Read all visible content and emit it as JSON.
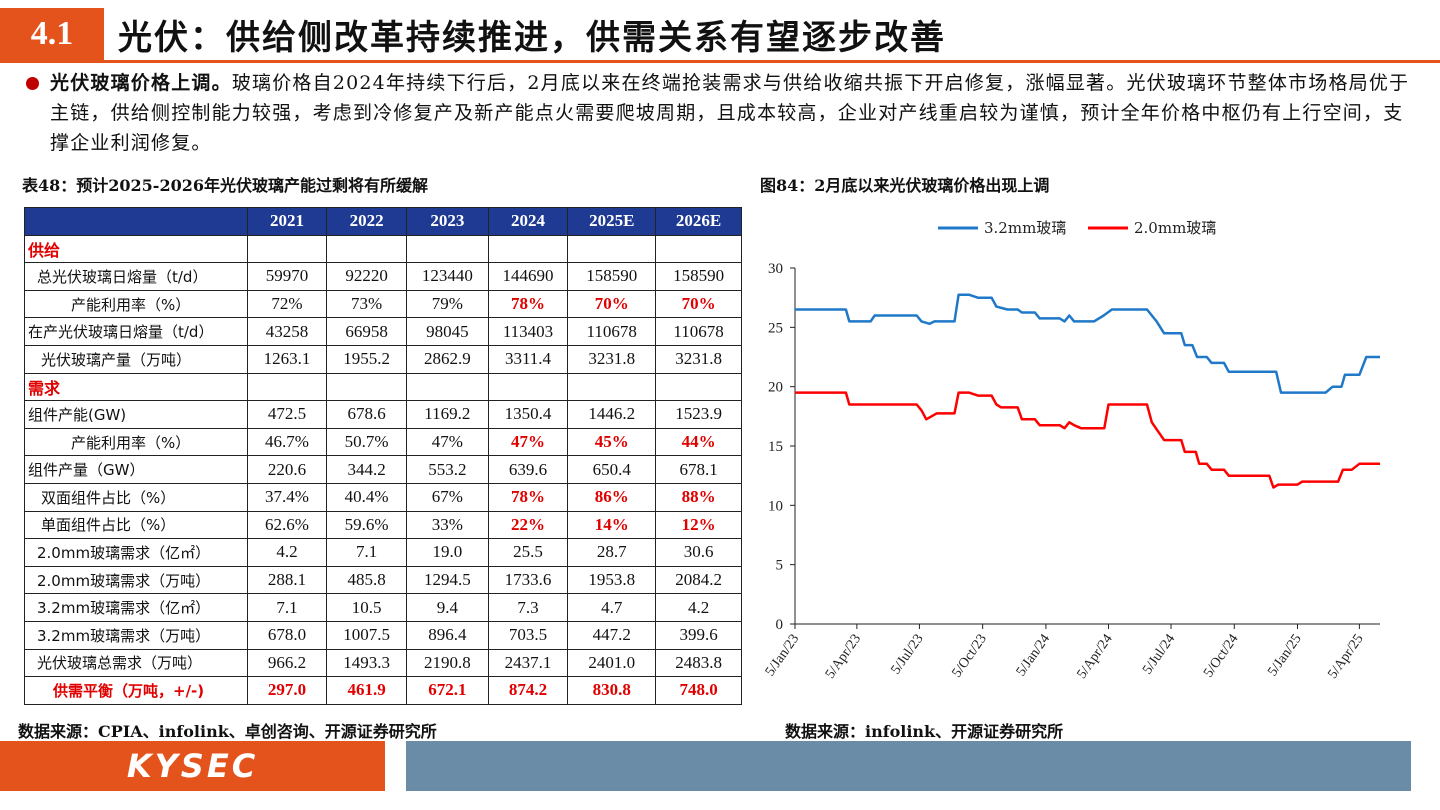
{
  "header": {
    "section_number": "4.1",
    "title": "光伏：供给侧改革持续推进，供需关系有望逐步改善"
  },
  "bullet": {
    "lead": "光伏玻璃价格上调。",
    "text": "玻璃价格自2024年持续下行后，2月底以来在终端抢装需求与供给收缩共振下开启修复，涨幅显著。光伏玻璃环节整体市场格局优于主链，供给侧控制能力较强，考虑到冷修复产及新产能点火需要爬坡周期，且成本较高，企业对产线重启较为谨慎，预计全年价格中枢仍有上行空间，支撑企业利润修复。"
  },
  "table": {
    "caption": "表48：预计2025-2026年光伏玻璃产能过剩将有所缓解",
    "headers": [
      "",
      "2021",
      "2022",
      "2023",
      "2024",
      "2025E",
      "2026E"
    ],
    "section_supply": "供给",
    "section_demand": "需求",
    "rows_supply": [
      {
        "label": "总光伏玻璃日熔量（t/d）",
        "values": [
          "59970",
          "92220",
          "123440",
          "144690",
          "158590",
          "158590"
        ],
        "red": [
          false,
          false,
          false,
          false,
          false,
          false
        ]
      },
      {
        "label": "产能利用率（%）",
        "values": [
          "72%",
          "73%",
          "79%",
          "78%",
          "70%",
          "70%"
        ],
        "red": [
          false,
          false,
          false,
          true,
          true,
          true
        ]
      },
      {
        "label": "在产光伏玻璃日熔量（t/d）",
        "values": [
          "43258",
          "66958",
          "98045",
          "113403",
          "110678",
          "110678"
        ],
        "red": [
          false,
          false,
          false,
          false,
          false,
          false
        ]
      },
      {
        "label": "光伏玻璃产量（万吨）",
        "values": [
          "1263.1",
          "1955.2",
          "2862.9",
          "3311.4",
          "3231.8",
          "3231.8"
        ],
        "red": [
          false,
          false,
          false,
          false,
          false,
          false
        ]
      }
    ],
    "rows_demand": [
      {
        "label": "组件产能(GW)",
        "values": [
          "472.5",
          "678.6",
          "1169.2",
          "1350.4",
          "1446.2",
          "1523.9"
        ],
        "red": [
          false,
          false,
          false,
          false,
          false,
          false
        ]
      },
      {
        "label": "产能利用率（%）",
        "values": [
          "46.7%",
          "50.7%",
          "47%",
          "47%",
          "45%",
          "44%"
        ],
        "red": [
          false,
          false,
          false,
          true,
          true,
          true
        ]
      },
      {
        "label": "组件产量（GW）",
        "values": [
          "220.6",
          "344.2",
          "553.2",
          "639.6",
          "650.4",
          "678.1"
        ],
        "red": [
          false,
          false,
          false,
          false,
          false,
          false
        ]
      },
      {
        "label": "双面组件占比（%）",
        "values": [
          "37.4%",
          "40.4%",
          "67%",
          "78%",
          "86%",
          "88%"
        ],
        "red": [
          false,
          false,
          false,
          true,
          true,
          true
        ]
      },
      {
        "label": "单面组件占比（%）",
        "values": [
          "62.6%",
          "59.6%",
          "33%",
          "22%",
          "14%",
          "12%"
        ],
        "red": [
          false,
          false,
          false,
          true,
          true,
          true
        ]
      },
      {
        "label": "2.0mm玻璃需求（亿㎡）",
        "values": [
          "4.2",
          "7.1",
          "19.0",
          "25.5",
          "28.7",
          "30.6"
        ],
        "red": [
          false,
          false,
          false,
          false,
          false,
          false
        ]
      },
      {
        "label": "2.0mm玻璃需求（万吨）",
        "values": [
          "288.1",
          "485.8",
          "1294.5",
          "1733.6",
          "1953.8",
          "2084.2"
        ],
        "red": [
          false,
          false,
          false,
          false,
          false,
          false
        ]
      },
      {
        "label": "3.2mm玻璃需求（亿㎡）",
        "values": [
          "7.1",
          "10.5",
          "9.4",
          "7.3",
          "4.7",
          "4.2"
        ],
        "red": [
          false,
          false,
          false,
          false,
          false,
          false
        ]
      },
      {
        "label": "3.2mm玻璃需求（万吨）",
        "values": [
          "678.0",
          "1007.5",
          "896.4",
          "703.5",
          "447.2",
          "399.6"
        ],
        "red": [
          false,
          false,
          false,
          false,
          false,
          false
        ]
      },
      {
        "label": "光伏玻璃总需求（万吨）",
        "values": [
          "966.2",
          "1493.3",
          "2190.8",
          "2437.1",
          "2401.0",
          "2483.8"
        ],
        "red": [
          false,
          false,
          false,
          false,
          false,
          false
        ]
      }
    ],
    "balance": {
      "label": "供需平衡（万吨，+/-)",
      "values": [
        "297.0",
        "461.9",
        "672.1",
        "874.2",
        "830.8",
        "748.0"
      ]
    }
  },
  "chart_caption": "图84：2月底以来光伏玻璃价格出现上调",
  "chart_data": {
    "type": "line",
    "x_ticks": [
      "5/Jan/23",
      "5/Apr/23",
      "5/Jul/23",
      "5/Oct/23",
      "5/Jan/24",
      "5/Apr/24",
      "5/Jul/24",
      "5/Oct/24",
      "5/Jan/25",
      "5/Apr/25"
    ],
    "ylim": [
      0,
      30
    ],
    "y_ticks": [
      0,
      5,
      10,
      15,
      20,
      25,
      30
    ],
    "legend_position": "top",
    "series": [
      {
        "name": "3.2mm玻璃",
        "color": "#1f78c8",
        "points": [
          [
            "2023-01-05",
            26.5
          ],
          [
            "2023-03-20",
            26.5
          ],
          [
            "2023-03-25",
            25.5
          ],
          [
            "2023-04-25",
            25.5
          ],
          [
            "2023-05-01",
            26.0
          ],
          [
            "2023-07-01",
            26.0
          ],
          [
            "2023-07-08",
            25.5
          ],
          [
            "2023-07-20",
            25.3
          ],
          [
            "2023-07-27",
            25.5
          ],
          [
            "2023-08-25",
            25.5
          ],
          [
            "2023-08-31",
            27.75
          ],
          [
            "2023-09-15",
            27.75
          ],
          [
            "2023-09-28",
            27.5
          ],
          [
            "2023-10-18",
            27.5
          ],
          [
            "2023-10-25",
            26.75
          ],
          [
            "2023-11-10",
            26.5
          ],
          [
            "2023-11-25",
            26.5
          ],
          [
            "2023-12-01",
            26.25
          ],
          [
            "2023-12-20",
            26.25
          ],
          [
            "2023-12-27",
            25.75
          ],
          [
            "2024-01-25",
            25.75
          ],
          [
            "2024-02-01",
            25.5
          ],
          [
            "2024-02-08",
            26.0
          ],
          [
            "2024-02-15",
            25.5
          ],
          [
            "2024-03-15",
            25.5
          ],
          [
            "2024-03-29",
            26.0
          ],
          [
            "2024-04-10",
            26.5
          ],
          [
            "2024-05-31",
            26.5
          ],
          [
            "2024-06-14",
            25.5
          ],
          [
            "2024-06-25",
            24.5
          ],
          [
            "2024-07-20",
            24.5
          ],
          [
            "2024-07-25",
            23.5
          ],
          [
            "2024-08-05",
            23.5
          ],
          [
            "2024-08-12",
            22.5
          ],
          [
            "2024-08-26",
            22.5
          ],
          [
            "2024-09-02",
            22.0
          ],
          [
            "2024-09-20",
            22.0
          ],
          [
            "2024-09-27",
            21.25
          ],
          [
            "2024-12-05",
            21.25
          ],
          [
            "2024-12-12",
            19.5
          ],
          [
            "2025-02-15",
            19.5
          ],
          [
            "2025-02-25",
            20.0
          ],
          [
            "2025-03-10",
            20.0
          ],
          [
            "2025-03-15",
            21.0
          ],
          [
            "2025-04-05",
            21.0
          ],
          [
            "2025-04-15",
            22.5
          ],
          [
            "2025-05-05",
            22.5
          ]
        ]
      },
      {
        "name": "2.0mm玻璃",
        "color": "#ff0000",
        "points": [
          [
            "2023-01-05",
            19.5
          ],
          [
            "2023-03-20",
            19.5
          ],
          [
            "2023-03-25",
            18.5
          ],
          [
            "2023-07-01",
            18.5
          ],
          [
            "2023-07-08",
            18.0
          ],
          [
            "2023-07-15",
            17.25
          ],
          [
            "2023-07-30",
            17.75
          ],
          [
            "2023-08-25",
            17.75
          ],
          [
            "2023-08-31",
            19.5
          ],
          [
            "2023-09-15",
            19.5
          ],
          [
            "2023-09-28",
            19.25
          ],
          [
            "2023-10-18",
            19.25
          ],
          [
            "2023-10-25",
            18.5
          ],
          [
            "2023-11-01",
            18.25
          ],
          [
            "2023-11-25",
            18.25
          ],
          [
            "2023-12-01",
            17.25
          ],
          [
            "2023-12-20",
            17.25
          ],
          [
            "2023-12-27",
            16.75
          ],
          [
            "2024-01-25",
            16.75
          ],
          [
            "2024-02-01",
            16.5
          ],
          [
            "2024-02-08",
            17.0
          ],
          [
            "2024-02-15",
            16.75
          ],
          [
            "2024-02-25",
            16.5
          ],
          [
            "2024-03-30",
            16.5
          ],
          [
            "2024-04-05",
            18.5
          ],
          [
            "2024-05-31",
            18.5
          ],
          [
            "2024-06-07",
            17.0
          ],
          [
            "2024-06-25",
            15.5
          ],
          [
            "2024-07-20",
            15.5
          ],
          [
            "2024-07-25",
            14.5
          ],
          [
            "2024-08-10",
            14.5
          ],
          [
            "2024-08-15",
            13.5
          ],
          [
            "2024-08-26",
            13.5
          ],
          [
            "2024-09-02",
            13.0
          ],
          [
            "2024-09-20",
            13.0
          ],
          [
            "2024-09-27",
            12.5
          ],
          [
            "2024-11-25",
            12.5
          ],
          [
            "2024-12-01",
            11.5
          ],
          [
            "2024-12-08",
            11.75
          ],
          [
            "2025-01-05",
            11.75
          ],
          [
            "2025-01-12",
            12.0
          ],
          [
            "2025-03-05",
            12.0
          ],
          [
            "2025-03-12",
            13.0
          ],
          [
            "2025-03-25",
            13.0
          ],
          [
            "2025-04-05",
            13.5
          ],
          [
            "2025-05-05",
            13.5
          ]
        ]
      }
    ]
  },
  "sources": {
    "left": "数据来源：CPIA、infolink、卓创咨询、开源证券研究所",
    "right": "数据来源：infolink、开源证券研究所"
  },
  "footer": {
    "logo": "KYSEC"
  }
}
